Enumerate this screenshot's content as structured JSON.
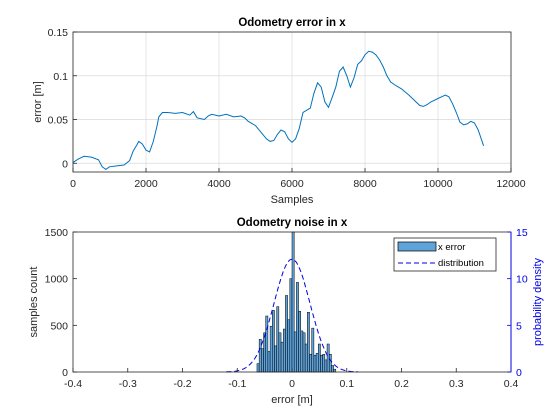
{
  "colors": {
    "line": "#0072bd",
    "bar_fill": "#5fa3db",
    "bar_edge": "#000000",
    "distribution": "#0000e6",
    "grid": "#d9d9d9",
    "axis": "#262626",
    "right_axis": "#0000e6"
  },
  "chart_data": [
    {
      "type": "line",
      "title": "Odometry error in x",
      "xlabel": "Samples",
      "ylabel": "error [m]",
      "xlim": [
        0,
        12000
      ],
      "ylim": [
        -0.01,
        0.15
      ],
      "grid": true,
      "xticks": [
        0,
        2000,
        4000,
        6000,
        8000,
        10000,
        12000
      ],
      "xtick_labels": [
        "0",
        "2000",
        "4000",
        "6000",
        "8000",
        "10000",
        "12000"
      ],
      "yticks": [
        0,
        0.05,
        0.1,
        0.15
      ],
      "ytick_labels": [
        "0",
        "0.05",
        "0.1",
        "0.15"
      ],
      "series": [
        {
          "x": [
            0,
            150,
            300,
            500,
            700,
            800,
            900,
            1000,
            1200,
            1400,
            1550,
            1650,
            1750,
            1800,
            1900,
            2000,
            2100,
            2200,
            2300,
            2350,
            2450,
            2600,
            2800,
            3000,
            3200,
            3300,
            3400,
            3600,
            3700,
            3800,
            4000,
            4200,
            4400,
            4600,
            4700,
            4800,
            5000,
            5200,
            5300,
            5400,
            5500,
            5600,
            5700,
            5800,
            5900,
            6000,
            6100,
            6200,
            6300,
            6500,
            6600,
            6700,
            6800,
            6900,
            7000,
            7100,
            7200,
            7300,
            7400,
            7500,
            7600,
            7700,
            7800,
            7900,
            8000,
            8100,
            8200,
            8300,
            8400,
            8500,
            8600,
            8700,
            8800,
            9000,
            9200,
            9400,
            9500,
            9600,
            9700,
            9800,
            9900,
            10000,
            10100,
            10200,
            10300,
            10400,
            10500,
            10600,
            10700,
            10800,
            10900,
            11000,
            11100,
            11250
          ],
          "y": [
            0.001,
            0.005,
            0.008,
            0.007,
            0.004,
            -0.004,
            -0.007,
            -0.004,
            -0.003,
            -0.002,
            0.003,
            0.014,
            0.021,
            0.025,
            0.022,
            0.015,
            0.013,
            0.025,
            0.042,
            0.053,
            0.058,
            0.058,
            0.057,
            0.058,
            0.055,
            0.059,
            0.052,
            0.05,
            0.054,
            0.056,
            0.054,
            0.056,
            0.053,
            0.054,
            0.052,
            0.048,
            0.043,
            0.033,
            0.028,
            0.025,
            0.026,
            0.033,
            0.038,
            0.036,
            0.028,
            0.024,
            0.028,
            0.04,
            0.058,
            0.063,
            0.08,
            0.092,
            0.087,
            0.07,
            0.064,
            0.075,
            0.087,
            0.105,
            0.11,
            0.1,
            0.087,
            0.098,
            0.113,
            0.117,
            0.124,
            0.128,
            0.127,
            0.124,
            0.118,
            0.11,
            0.1,
            0.093,
            0.09,
            0.085,
            0.078,
            0.07,
            0.066,
            0.065,
            0.067,
            0.07,
            0.072,
            0.074,
            0.076,
            0.078,
            0.076,
            0.068,
            0.058,
            0.047,
            0.044,
            0.045,
            0.048,
            0.046,
            0.038,
            0.02
          ]
        }
      ]
    },
    {
      "type": "bar",
      "title": "Odometry noise in x",
      "xlabel": "error [m]",
      "ylabel": "samples count",
      "ylabel_right": "probability density",
      "xlim": [
        -0.4,
        0.4
      ],
      "ylim": [
        0,
        1500
      ],
      "ylim_right": [
        0,
        15
      ],
      "grid": false,
      "legend_position": "top-right",
      "xticks": [
        -0.4,
        -0.3,
        -0.2,
        -0.1,
        0,
        0.1,
        0.2,
        0.3,
        0.4
      ],
      "xtick_labels": [
        "-0.4",
        "-0.3",
        "-0.2",
        "-0.1",
        "0",
        "0.1",
        "0.2",
        "0.3",
        "0.4"
      ],
      "yticks": [
        0,
        500,
        1000,
        1500
      ],
      "ytick_labels": [
        "0",
        "500",
        "1000",
        "1500"
      ],
      "yticks_right": [
        0,
        5,
        10,
        15
      ],
      "ytick_labels_right": [
        "0",
        "5",
        "10",
        "15"
      ],
      "legend": [
        "x error",
        "distribution"
      ],
      "series": [
        {
          "name": "x error",
          "type": "bar",
          "bin_width": 0.004,
          "x": [
            -0.062,
            -0.058,
            -0.054,
            -0.05,
            -0.046,
            -0.042,
            -0.038,
            -0.034,
            -0.03,
            -0.026,
            -0.022,
            -0.018,
            -0.014,
            -0.01,
            -0.006,
            -0.002,
            0.002,
            0.006,
            0.01,
            0.014,
            0.018,
            0.022,
            0.026,
            0.03,
            0.034,
            0.038,
            0.042,
            0.046,
            0.05,
            0.054,
            0.058,
            0.062,
            0.066,
            0.07,
            0.074,
            0.078
          ],
          "values": [
            90,
            350,
            250,
            420,
            600,
            220,
            490,
            660,
            280,
            700,
            420,
            320,
            460,
            820,
            560,
            1000,
            1500,
            430,
            960,
            650,
            440,
            420,
            300,
            640,
            190,
            470,
            180,
            200,
            300,
            180,
            190,
            130,
            300,
            190,
            70,
            30
          ]
        },
        {
          "name": "distribution",
          "type": "line",
          "axis": "right",
          "mean": 0.0,
          "std": 0.033,
          "peak": 12.1
        }
      ]
    }
  ]
}
